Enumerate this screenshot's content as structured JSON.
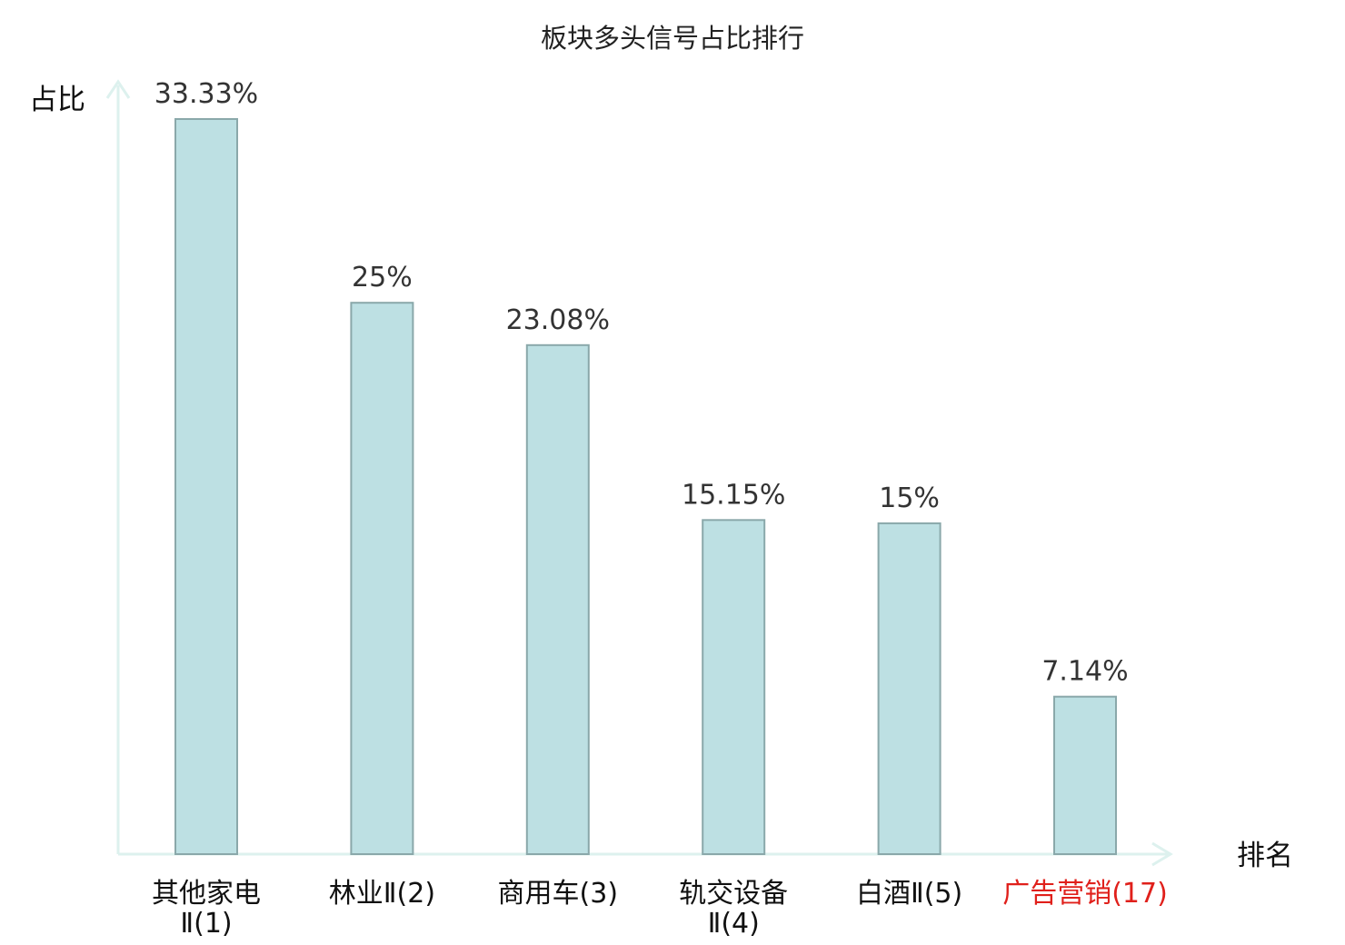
{
  "chart_data": {
    "type": "bar",
    "title": "板块多头信号占比排行",
    "ylabel": "占比",
    "xlabel": "排名",
    "categories": [
      [
        "其他家电",
        "Ⅱ(1)"
      ],
      [
        "林业Ⅱ(2)"
      ],
      [
        "商用车(3)"
      ],
      [
        "轨交设备",
        "Ⅱ(4)"
      ],
      [
        "白酒Ⅱ(5)"
      ],
      [
        "广告营销(17)"
      ]
    ],
    "values": [
      33.33,
      25,
      23.08,
      15.15,
      15,
      7.14
    ],
    "value_labels": [
      "33.33%",
      "25%",
      "23.08%",
      "15.15%",
      "15%",
      "7.14%"
    ],
    "highlight_index": 5,
    "ylim": [
      0,
      33.33
    ],
    "grid": false,
    "colors": {
      "bar_fill": "#bde0e3",
      "bar_stroke": "#8aa8aa",
      "axis": "#ddf1ee",
      "category_text": "#111111",
      "highlight_text": "#e0201b",
      "value_text": "#333333"
    }
  }
}
